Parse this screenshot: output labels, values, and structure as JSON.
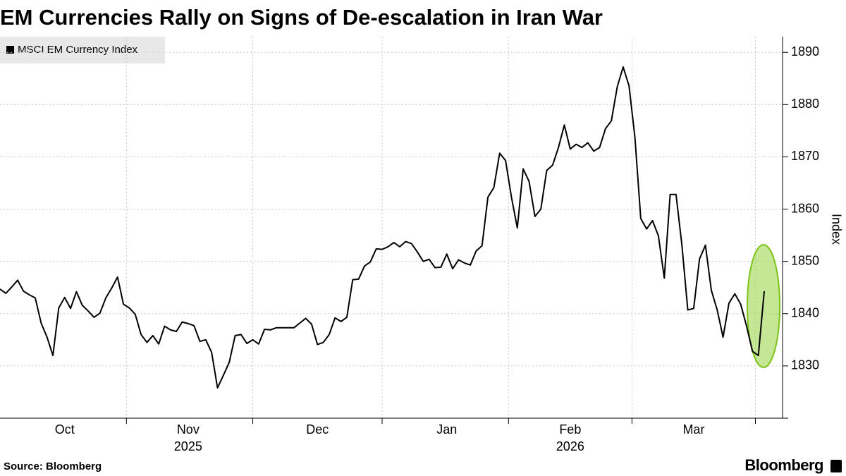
{
  "chart_data": {
    "type": "line",
    "title": "EM Currencies Rally on Signs of De-escalation in Iran War",
    "y_axis_label": "Index",
    "source": "Source: Bloomberg",
    "logo": "Bloomberg",
    "ylim": [
      1820,
      1893
    ],
    "yticks": [
      1830,
      1840,
      1850,
      1860,
      1870,
      1880,
      1890
    ],
    "grid": true,
    "legend_position": "top-left",
    "categories": [
      null,
      null,
      null,
      null,
      null,
      null,
      null,
      null,
      null,
      null,
      null,
      "Oct",
      null,
      null,
      null,
      null,
      null,
      null,
      null,
      null,
      null,
      null,
      null,
      null,
      null,
      null,
      null,
      null,
      null,
      null,
      null,
      null,
      "Nov",
      null,
      null,
      null,
      null,
      null,
      null,
      null,
      null,
      null,
      null,
      null,
      null,
      null,
      null,
      null,
      null,
      null,
      null,
      null,
      null,
      null,
      "Dec",
      null,
      null,
      null,
      null,
      null,
      null,
      null,
      null,
      null,
      null,
      null,
      null,
      null,
      null,
      null,
      null,
      null,
      null,
      null,
      null,
      null,
      "Jan",
      null,
      null,
      null,
      null,
      null,
      null,
      null,
      null,
      null,
      null,
      null,
      null,
      null,
      null,
      null,
      null,
      null,
      null,
      null,
      null,
      "Feb",
      null,
      null,
      null,
      null,
      null,
      null,
      null,
      null,
      null,
      null,
      null,
      null,
      null,
      null,
      null,
      null,
      null,
      null,
      null,
      null,
      "Mar",
      null,
      null,
      null,
      null,
      null,
      null,
      null,
      null,
      null,
      null,
      null,
      null
    ],
    "x_year_labels": {
      "Nov": "2025",
      "Feb": "2026"
    },
    "series": [
      {
        "name": "MSCI EM Currency Index",
        "color": "#000000",
        "values": [
          1844.7,
          1843.9,
          1845.1,
          1846.4,
          1844.3,
          1843.6,
          1843.0,
          1838.2,
          1835.5,
          1832.0,
          1841.1,
          1843.1,
          1841.0,
          1844.2,
          1841.6,
          1840.5,
          1839.3,
          1840.1,
          1843.0,
          1844.9,
          1847.0,
          1841.8,
          1841.1,
          1839.9,
          1836.0,
          1834.5,
          1835.8,
          1834.2,
          1837.6,
          1836.9,
          1836.6,
          1838.4,
          1838.1,
          1837.7,
          1834.7,
          1835.0,
          1832.6,
          1825.8,
          1828.2,
          1830.7,
          1835.8,
          1836.0,
          1834.3,
          1835.0,
          1834.2,
          1837.0,
          1836.9,
          1837.3,
          1837.3,
          1837.3,
          1837.3,
          1838.2,
          1839.1,
          1838.0,
          1834.1,
          1834.5,
          1836.0,
          1839.2,
          1838.5,
          1839.3,
          1846.5,
          1846.6,
          1849.1,
          1849.9,
          1852.4,
          1852.3,
          1852.8,
          1853.6,
          1852.8,
          1853.8,
          1853.4,
          1851.8,
          1850.0,
          1850.4,
          1848.8,
          1848.9,
          1851.4,
          1848.6,
          1850.3,
          1849.7,
          1849.3,
          1852.0,
          1853.0,
          1862.3,
          1864.1,
          1870.7,
          1869.3,
          1862.3,
          1856.4,
          1867.7,
          1865.3,
          1858.6,
          1860.0,
          1867.4,
          1868.4,
          1871.8,
          1876.1,
          1871.5,
          1872.4,
          1871.8,
          1872.7,
          1871.1,
          1871.8,
          1875.4,
          1876.9,
          1883.4,
          1887.2,
          1883.6,
          1873.8,
          1858.2,
          1856.2,
          1857.8,
          1854.9,
          1846.8,
          1862.8,
          1862.8,
          1853.1,
          1840.7,
          1841.0,
          1850.5,
          1853.1,
          1844.5,
          1840.7,
          1835.5,
          1842.0,
          1843.8,
          1841.8,
          1837.6,
          1832.8,
          1832.0,
          1844.3
        ]
      }
    ]
  }
}
